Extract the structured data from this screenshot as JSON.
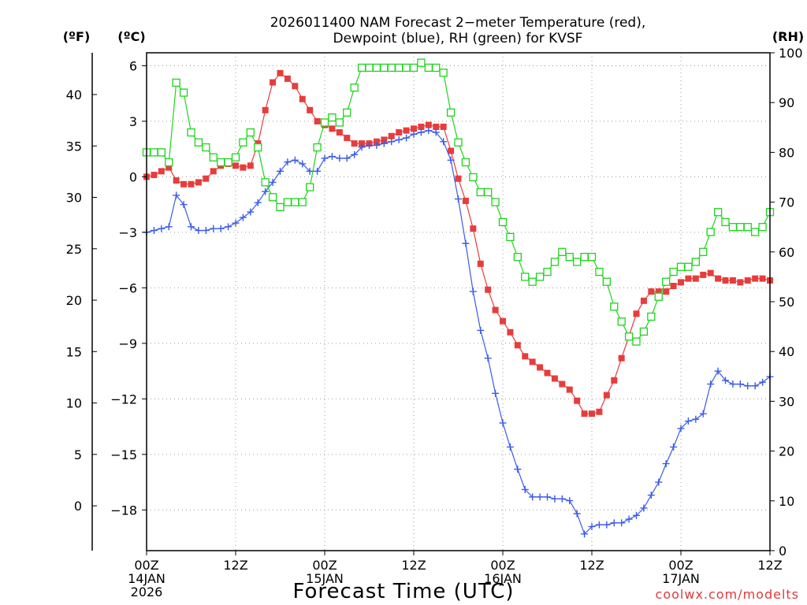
{
  "chart_data": {
    "type": "line",
    "title_lines": [
      "2026011400 NAM Forecast 2−meter Temperature (red),",
      "Dewpoint (blue), RH (green) for KVSF"
    ],
    "xlabel": "Forecast Time (UTC)",
    "credit": "coolwx.com/modelts",
    "units": {
      "fahrenheit": "(ºF)",
      "celsius": "(ºC)",
      "rh": "(RH)"
    },
    "x_hours_range": [
      0,
      84
    ],
    "x_ticks": [
      {
        "hour": 0,
        "label": "00Z",
        "date": "14JAN",
        "year": "2026"
      },
      {
        "hour": 12,
        "label": "12Z",
        "date": "",
        "year": ""
      },
      {
        "hour": 24,
        "label": "00Z",
        "date": "15JAN",
        "year": ""
      },
      {
        "hour": 36,
        "label": "12Z",
        "date": "",
        "year": ""
      },
      {
        "hour": 48,
        "label": "00Z",
        "date": "16JAN",
        "year": ""
      },
      {
        "hour": 60,
        "label": "12Z",
        "date": "",
        "year": ""
      },
      {
        "hour": 72,
        "label": "00Z",
        "date": "17JAN",
        "year": ""
      },
      {
        "hour": 84,
        "label": "12Z",
        "date": "",
        "year": ""
      }
    ],
    "celsius_range": [
      -20.2,
      6.7
    ],
    "celsius_ticks": [
      "6",
      "3",
      "0",
      "−3",
      "−6",
      "−9",
      "−12",
      "−15",
      "−18"
    ],
    "celsius_tick_values": [
      6,
      3,
      0,
      -3,
      -6,
      -9,
      -12,
      -15,
      -18
    ],
    "fahrenheit_range": [
      -4.36,
      44.06
    ],
    "fahrenheit_ticks": [
      "40",
      "35",
      "30",
      "25",
      "20",
      "15",
      "10",
      "5",
      "0"
    ],
    "fahrenheit_tick_values": [
      40,
      35,
      30,
      25,
      20,
      15,
      10,
      5,
      0
    ],
    "rh_range": [
      0,
      100
    ],
    "rh_ticks": [
      "100",
      "90",
      "80",
      "70",
      "60",
      "50",
      "40",
      "30",
      "20",
      "10",
      "0"
    ],
    "rh_tick_values": [
      100,
      90,
      80,
      70,
      60,
      50,
      40,
      30,
      20,
      10,
      0
    ],
    "grid": true,
    "series": [
      {
        "name": "Temperature",
        "axis": "celsius",
        "marker": "filled-square",
        "color": "#e83c3c",
        "x": [
          0,
          1,
          2,
          3,
          4,
          5,
          6,
          7,
          8,
          9,
          10,
          11,
          12,
          13,
          14,
          15,
          16,
          17,
          18,
          19,
          20,
          21,
          22,
          23,
          24,
          25,
          26,
          27,
          28,
          29,
          30,
          31,
          32,
          33,
          34,
          35,
          36,
          37,
          38,
          39,
          40,
          41,
          42,
          43,
          44,
          45,
          46,
          47,
          48,
          49,
          50,
          51,
          52,
          53,
          54,
          55,
          56,
          57,
          58,
          59,
          60,
          61,
          62,
          63,
          64,
          65,
          66,
          67,
          68,
          69,
          70,
          71,
          72,
          73,
          74,
          75,
          76,
          77,
          78,
          79,
          80,
          81,
          82,
          83,
          84
        ],
        "y": [
          0.0,
          0.1,
          0.3,
          0.5,
          -0.2,
          -0.4,
          -0.4,
          -0.3,
          -0.1,
          0.3,
          0.6,
          0.7,
          0.6,
          0.5,
          0.6,
          1.8,
          3.6,
          5.1,
          5.6,
          5.3,
          4.9,
          4.2,
          3.6,
          3.0,
          2.8,
          2.6,
          2.4,
          2.1,
          1.8,
          1.8,
          1.8,
          1.9,
          2.0,
          2.2,
          2.4,
          2.5,
          2.6,
          2.7,
          2.8,
          2.7,
          2.7,
          1.4,
          -0.1,
          -1.3,
          -2.8,
          -4.7,
          -6.1,
          -7.2,
          -7.8,
          -8.4,
          -9.1,
          -9.7,
          -10.0,
          -10.3,
          -10.6,
          -10.9,
          -11.2,
          -11.5,
          -12.1,
          -12.8,
          -12.8,
          -12.7,
          -11.8,
          -11.0,
          -9.8,
          -8.6,
          -7.4,
          -6.7,
          -6.2,
          -6.2,
          -6.2,
          -5.9,
          -5.7,
          -5.5,
          -5.5,
          -5.3,
          -5.2,
          -5.5,
          -5.6,
          -5.6,
          -5.7,
          -5.6,
          -5.5,
          -5.5,
          -5.6
        ]
      },
      {
        "name": "Dewpoint",
        "axis": "celsius",
        "marker": "plus",
        "color": "#3a5be8",
        "x": [
          0,
          1,
          2,
          3,
          4,
          5,
          6,
          7,
          8,
          9,
          10,
          11,
          12,
          13,
          14,
          15,
          16,
          17,
          18,
          19,
          20,
          21,
          22,
          23,
          24,
          25,
          26,
          27,
          28,
          29,
          30,
          31,
          32,
          33,
          34,
          35,
          36,
          37,
          38,
          39,
          40,
          41,
          42,
          43,
          44,
          45,
          46,
          47,
          48,
          49,
          50,
          51,
          52,
          53,
          54,
          55,
          56,
          57,
          58,
          59,
          60,
          61,
          62,
          63,
          64,
          65,
          66,
          67,
          68,
          69,
          70,
          71,
          72,
          73,
          74,
          75,
          76,
          77,
          78,
          79,
          80,
          81,
          82,
          83,
          84
        ],
        "y": [
          -3.0,
          -2.9,
          -2.8,
          -2.7,
          -1.0,
          -1.5,
          -2.7,
          -2.9,
          -2.9,
          -2.8,
          -2.8,
          -2.7,
          -2.5,
          -2.2,
          -1.9,
          -1.4,
          -0.8,
          -0.3,
          0.3,
          0.8,
          0.9,
          0.7,
          0.3,
          0.3,
          1.0,
          1.1,
          1.0,
          1.0,
          1.2,
          1.6,
          1.7,
          1.7,
          1.8,
          1.9,
          2.0,
          2.1,
          2.3,
          2.4,
          2.5,
          2.4,
          1.9,
          0.9,
          -1.2,
          -3.6,
          -6.2,
          -8.3,
          -9.8,
          -11.7,
          -13.3,
          -14.6,
          -15.8,
          -16.9,
          -17.3,
          -17.3,
          -17.3,
          -17.4,
          -17.4,
          -17.5,
          -18.2,
          -19.3,
          -18.9,
          -18.8,
          -18.8,
          -18.7,
          -18.7,
          -18.5,
          -18.3,
          -17.9,
          -17.2,
          -16.5,
          -15.5,
          -14.6,
          -13.6,
          -13.2,
          -13.1,
          -12.8,
          -11.2,
          -10.5,
          -11.0,
          -11.2,
          -11.2,
          -11.3,
          -11.3,
          -11.1,
          -10.8
        ]
      },
      {
        "name": "RH",
        "axis": "rh",
        "marker": "open-square",
        "color": "#1ed41e",
        "x": [
          0,
          1,
          2,
          3,
          4,
          5,
          6,
          7,
          8,
          9,
          10,
          11,
          12,
          13,
          14,
          15,
          16,
          17,
          18,
          19,
          20,
          21,
          22,
          23,
          24,
          25,
          26,
          27,
          28,
          29,
          30,
          31,
          32,
          33,
          34,
          35,
          36,
          37,
          38,
          39,
          40,
          41,
          42,
          43,
          44,
          45,
          46,
          47,
          48,
          49,
          50,
          51,
          52,
          53,
          54,
          55,
          56,
          57,
          58,
          59,
          60,
          61,
          62,
          63,
          64,
          65,
          66,
          67,
          68,
          69,
          70,
          71,
          72,
          73,
          74,
          75,
          76,
          77,
          78,
          79,
          80,
          81,
          82,
          83,
          84
        ],
        "y": [
          80,
          80,
          80,
          78,
          94,
          92,
          84,
          82,
          81,
          79,
          78,
          78,
          79,
          82,
          84,
          81,
          74,
          71,
          69,
          70,
          70,
          70,
          73,
          81,
          86,
          87,
          86,
          88,
          93,
          97,
          97,
          97,
          97,
          97,
          97,
          97,
          97,
          98,
          97,
          97,
          96,
          88,
          82,
          78,
          75,
          72,
          72,
          70,
          66,
          63,
          59,
          55,
          54,
          55,
          56,
          58,
          60,
          59,
          58,
          59,
          59,
          56,
          54,
          49,
          46,
          43,
          42,
          44,
          47,
          51,
          54,
          56,
          57,
          57,
          58,
          60,
          64,
          68,
          66,
          65,
          65,
          65,
          64,
          65,
          68
        ]
      }
    ]
  }
}
